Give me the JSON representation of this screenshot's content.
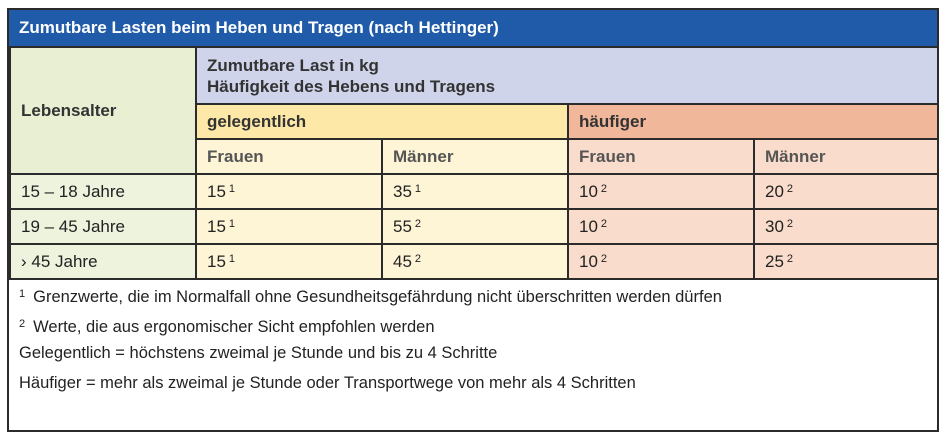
{
  "title": "Zumutbare Lasten beim Heben und Tragen (nach Hettinger)",
  "header": {
    "age_label": "Lebensalter",
    "load_line1": "Zumutbare Last in kg",
    "load_line2": "Häufigkeit des Hebens und Tragens",
    "occasional": "gelegentlich",
    "frequent": "häufiger",
    "women": "Frauen",
    "men": "Männer"
  },
  "rows": [
    {
      "age": "15 – 18 Jahre",
      "v1": "15",
      "s1": "1",
      "v2": "35",
      "s2": "1",
      "v3": "10",
      "s3": "2",
      "v4": "20",
      "s4": "2"
    },
    {
      "age": "19 – 45 Jahre",
      "v1": "15",
      "s1": "1",
      "v2": "55",
      "s2": "2",
      "v3": "10",
      "s3": "2",
      "v4": "30",
      "s4": "2"
    },
    {
      "age": "› 45 Jahre",
      "v1": "15",
      "s1": "1",
      "v2": "45",
      "s2": "2",
      "v3": "10",
      "s3": "2",
      "v4": "25",
      "s4": "2"
    }
  ],
  "notes": {
    "n1_sup": "1",
    "n1": "Grenzwerte, die im Normalfall ohne Gesundheitsgefährdung nicht überschritten werden dürfen",
    "n2_sup": "2",
    "n2": "Werte, die aus ergonomischer Sicht empfohlen werden",
    "n3": "Gelegentlich = höchstens zweimal je Stunde und bis zu 4 Schritte",
    "n4": "Häufiger = mehr als zweimal je Stunde oder Transportwege von mehr als 4 Schritten"
  },
  "colors": {
    "title_bg": "#1f5ba8",
    "age_bg": "#e8efd3",
    "load_bg": "#cfd4ea",
    "occasional_bg": "#fde8a8",
    "frequent_bg": "#f0b79a"
  }
}
